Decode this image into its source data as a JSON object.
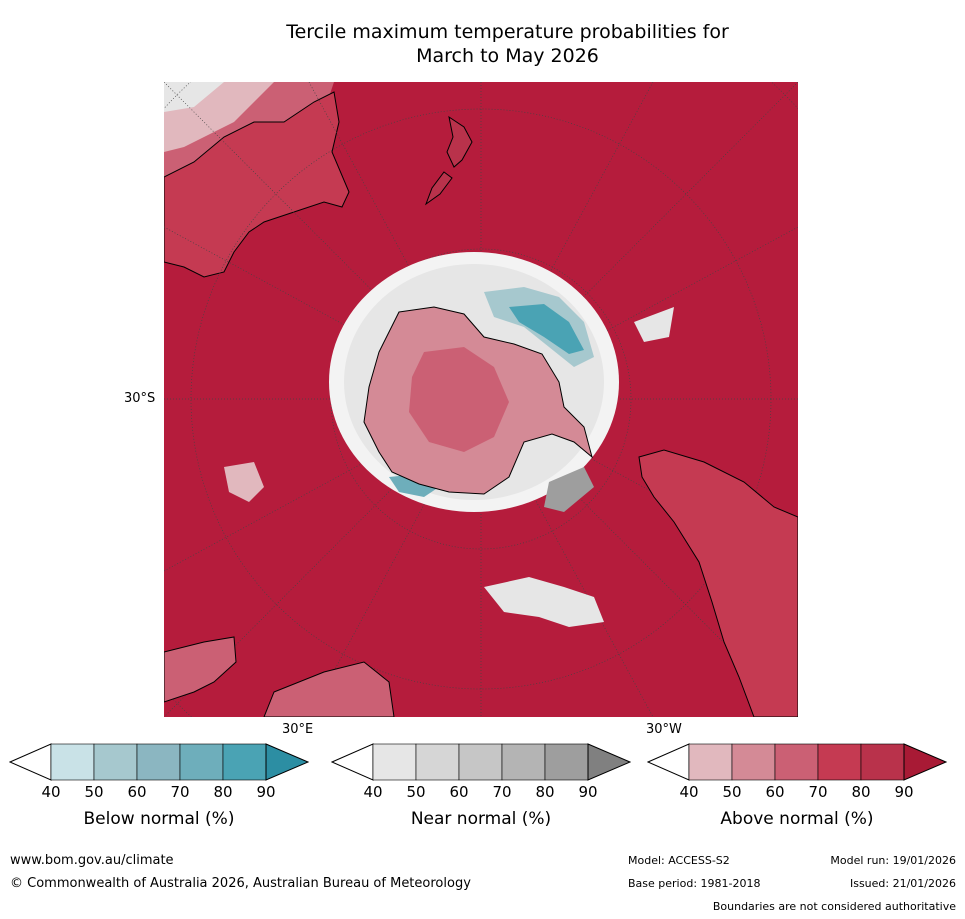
{
  "title": {
    "line1": "Tercile maximum temperature probabilities for",
    "line2": "March to May 2026"
  },
  "map": {
    "lat_label": "30°S",
    "lon_label_east": "30°E",
    "lon_label_west": "30°W",
    "colors": {
      "ocean_high": "#b51c3c",
      "above_80": "#c53a52",
      "above_70": "#cb6074",
      "above_60": "#d48a96",
      "above_50": "#e1b8be",
      "near": "#e6e6e6",
      "near_dark": "#9e9e9e",
      "below": "#4aa3b4",
      "below_light": "#a6c8ce"
    }
  },
  "colorbars": [
    {
      "label": "Below normal (%)",
      "ticks": [
        "40",
        "50",
        "60",
        "70",
        "80",
        "90"
      ],
      "colors": [
        "#ffffff",
        "#c9e2e7",
        "#a6c8ce",
        "#8bb6c1",
        "#6eaebb",
        "#4aa3b4",
        "#2c8ea3"
      ]
    },
    {
      "label": "Near normal (%)",
      "ticks": [
        "40",
        "50",
        "60",
        "70",
        "80",
        "90"
      ],
      "colors": [
        "#ffffff",
        "#e6e6e6",
        "#d6d6d6",
        "#c6c6c6",
        "#b4b4b4",
        "#9e9e9e",
        "#808080"
      ]
    },
    {
      "label": "Above normal (%)",
      "ticks": [
        "40",
        "50",
        "60",
        "70",
        "80",
        "90"
      ],
      "colors": [
        "#ffffff",
        "#e1b8be",
        "#d48a96",
        "#cb6074",
        "#c53a52",
        "#b9324b",
        "#a81a35"
      ]
    }
  ],
  "footer": {
    "url": "www.bom.gov.au/climate",
    "copyright": "© Commonwealth of Australia 2026, Australian Bureau of Meteorology",
    "model": "Model: ACCESS-S2",
    "model_run": "Model run: 19/01/2026",
    "base_period": "Base period: 1981-2018",
    "issued": "Issued: 21/01/2026",
    "disclaimer": "Boundaries are not considered authoritative"
  }
}
